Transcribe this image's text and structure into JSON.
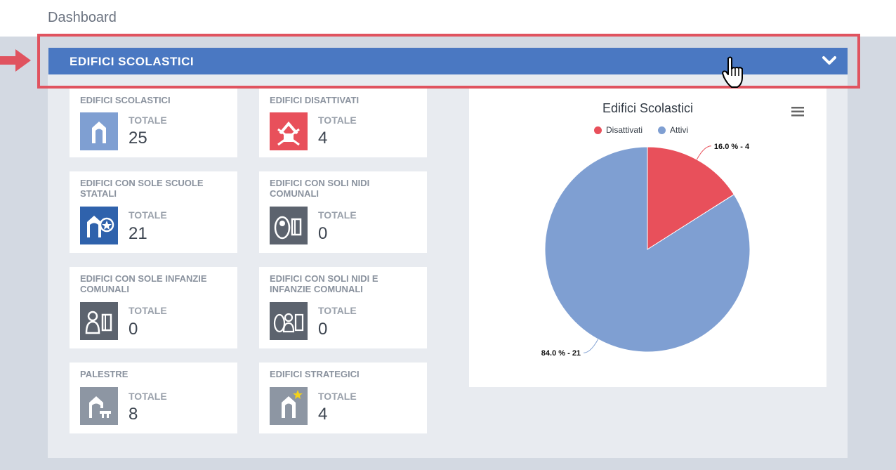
{
  "page": {
    "title": "Dashboard"
  },
  "section": {
    "title": "EDIFICI SCOLASTICI",
    "toggle_icon": "chevron-down-icon"
  },
  "colors": {
    "header_blue": "#4a78c2",
    "highlight_red": "#e0535f",
    "disattivati": "#e8505b",
    "attivi": "#7f9fd2"
  },
  "cards": [
    {
      "title": "EDIFICI SCOLASTICI",
      "label": "TOTALE",
      "value": "25",
      "icon": "school-building-icon"
    },
    {
      "title": "EDIFICI DISATTIVATI",
      "label": "TOTALE",
      "value": "4",
      "icon": "disabled-building-icon"
    },
    {
      "title": "EDIFICI CON SOLE SCUOLE STATALI",
      "label": "TOTALE",
      "value": "21",
      "icon": "state-school-icon"
    },
    {
      "title": "EDIFICI CON SOLI NIDI COMUNALI",
      "label": "TOTALE",
      "value": "0",
      "icon": "nursery-icon"
    },
    {
      "title": "EDIFICI CON SOLE INFANZIE COMUNALI",
      "label": "TOTALE",
      "value": "0",
      "icon": "kindergarten-icon"
    },
    {
      "title": "EDIFICI CON SOLI NIDI E INFANZIE COMUNALI",
      "label": "TOTALE",
      "value": "0",
      "icon": "nursery-kindergarten-icon"
    },
    {
      "title": "PALESTRE",
      "label": "TOTALE",
      "value": "8",
      "icon": "gym-icon"
    },
    {
      "title": "EDIFICI STRATEGICI",
      "label": "TOTALE",
      "value": "4",
      "icon": "strategic-building-icon"
    }
  ],
  "chart_data": {
    "type": "pie",
    "title": "Edifici Scolastici",
    "legend_position": "top",
    "series": [
      {
        "name": "Disattivati",
        "value": 4,
        "percent": 16.0,
        "label": "16.0 % - 4",
        "color": "#e8505b"
      },
      {
        "name": "Attivi",
        "value": 21,
        "percent": 84.0,
        "label": "84.0 % - 21",
        "color": "#7f9fd2"
      }
    ]
  }
}
